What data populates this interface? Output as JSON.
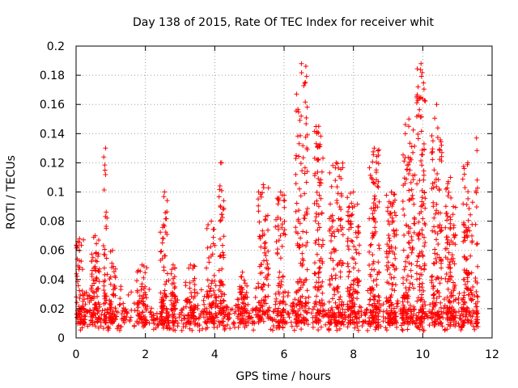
{
  "chart_data": {
    "type": "scatter",
    "title": "Day 138 of 2015, Rate Of TEC Index for receiver whit",
    "xlabel": "GPS time / hours",
    "ylabel": "ROTI / TECUs",
    "xlim": [
      0,
      12
    ],
    "ylim": [
      0,
      0.2
    ],
    "grid": true,
    "marker": "+",
    "colors": {
      "points": "#ff0000",
      "grid": "#a0a0a0",
      "frame": "#000000"
    },
    "x_ticks": [
      "0",
      "2",
      "4",
      "6",
      "8",
      "10",
      "12"
    ],
    "y_ticks": [
      "0",
      "0.02",
      "0.04",
      "0.06",
      "0.08",
      "0.1",
      "0.12",
      "0.14",
      "0.16",
      "0.18",
      "0.2"
    ],
    "x_tick_values": [
      0,
      2,
      4,
      6,
      8,
      10,
      12
    ],
    "y_tick_values": [
      0,
      0.02,
      0.04,
      0.06,
      0.08,
      0.1,
      0.12,
      0.14,
      0.16,
      0.18,
      0.2
    ],
    "series": [
      {
        "name": "ROTI",
        "background_band": {
          "x_range": [
            0,
            11.6
          ],
          "y_center": 0.012
        },
        "background_density_hint": 900,
        "bursts": [
          {
            "x": 0.1,
            "width": 0.35,
            "peak": 0.068,
            "density": 80
          },
          {
            "x": 0.55,
            "width": 0.25,
            "peak": 0.07,
            "density": 60
          },
          {
            "x": 0.85,
            "width": 0.12,
            "peak": 0.13,
            "density": 40
          },
          {
            "x": 1.05,
            "width": 0.2,
            "peak": 0.06,
            "density": 50
          },
          {
            "x": 1.9,
            "width": 0.3,
            "peak": 0.05,
            "density": 50
          },
          {
            "x": 2.55,
            "width": 0.25,
            "peak": 0.1,
            "density": 70
          },
          {
            "x": 2.8,
            "width": 0.15,
            "peak": 0.05,
            "density": 40
          },
          {
            "x": 3.3,
            "width": 0.3,
            "peak": 0.05,
            "density": 50
          },
          {
            "x": 3.9,
            "width": 0.3,
            "peak": 0.08,
            "density": 60
          },
          {
            "x": 4.2,
            "width": 0.15,
            "peak": 0.12,
            "density": 50
          },
          {
            "x": 4.8,
            "width": 0.3,
            "peak": 0.045,
            "density": 50
          },
          {
            "x": 5.4,
            "width": 0.3,
            "peak": 0.105,
            "density": 70
          },
          {
            "x": 5.9,
            "width": 0.3,
            "peak": 0.1,
            "density": 60
          },
          {
            "x": 6.5,
            "width": 0.35,
            "peak": 0.188,
            "density": 120
          },
          {
            "x": 7.0,
            "width": 0.25,
            "peak": 0.145,
            "density": 90
          },
          {
            "x": 7.5,
            "width": 0.4,
            "peak": 0.12,
            "density": 110
          },
          {
            "x": 8.0,
            "width": 0.35,
            "peak": 0.1,
            "density": 110
          },
          {
            "x": 8.6,
            "width": 0.3,
            "peak": 0.13,
            "density": 120
          },
          {
            "x": 9.1,
            "width": 0.3,
            "peak": 0.1,
            "density": 100
          },
          {
            "x": 9.6,
            "width": 0.35,
            "peak": 0.15,
            "density": 120
          },
          {
            "x": 9.95,
            "width": 0.25,
            "peak": 0.188,
            "density": 120
          },
          {
            "x": 10.4,
            "width": 0.3,
            "peak": 0.16,
            "density": 110
          },
          {
            "x": 10.8,
            "width": 0.3,
            "peak": 0.11,
            "density": 90
          },
          {
            "x": 11.3,
            "width": 0.3,
            "peak": 0.12,
            "density": 90
          },
          {
            "x": 11.55,
            "width": 0.08,
            "peak": 0.137,
            "density": 30
          }
        ]
      }
    ]
  }
}
